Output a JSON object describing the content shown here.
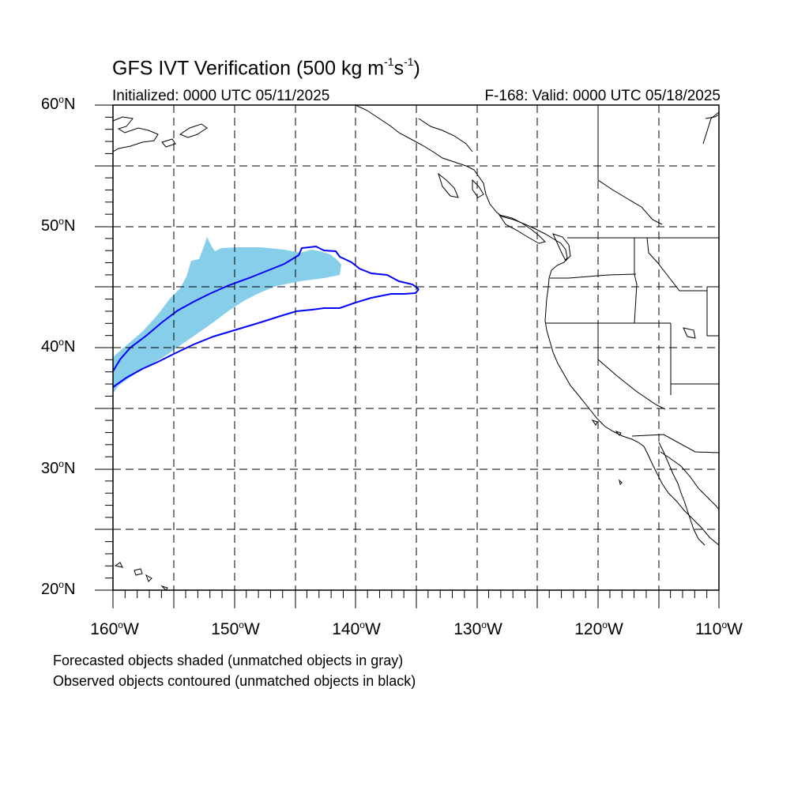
{
  "title": {
    "text": "GFS IVT Verification (500 kg m",
    "sup1": "-1",
    "mid": "s",
    "sup2": "-1",
    "close": ")"
  },
  "init_text": "Initialized: 0000 UTC 05/11/2025",
  "valid_text": "F-168: Valid: 0000 UTC 05/18/2025",
  "lat_labels": [
    "60",
    "50",
    "40",
    "30",
    "20"
  ],
  "lat_suffix": "N",
  "lon_labels": [
    "160",
    "150",
    "140",
    "130",
    "120",
    "110"
  ],
  "lon_suffix": "W",
  "footnotes": [
    "Forecasted objects shaded (unmatched objects in gray)",
    "Observed objects contoured (unmatched objects in black)"
  ],
  "colors": {
    "forecast_fill": "#87ceeb",
    "observed_contour": "#0000ff",
    "coast": "#000000",
    "grid": "#000000"
  },
  "map_extent": {
    "lon_min": -160,
    "lon_max": -110,
    "lat_min": 20,
    "lat_max": 60
  }
}
